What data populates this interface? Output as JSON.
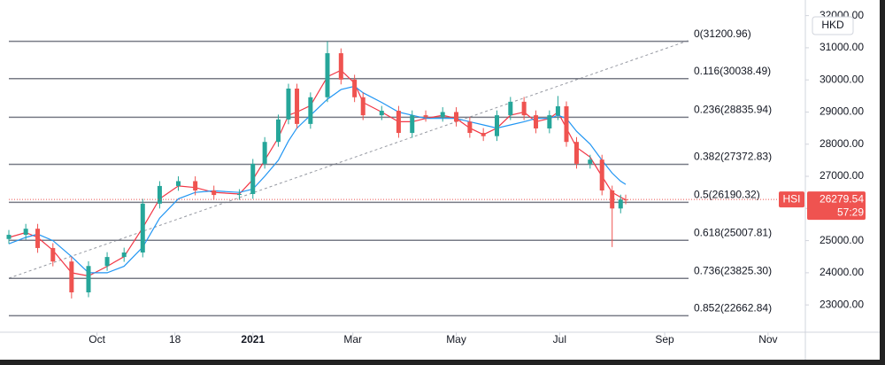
{
  "chart_data": {
    "type": "candlestick",
    "symbol": "HSI",
    "currency": "HKD",
    "countdown": "57:29",
    "x": [
      9,
      19,
      26,
      35,
      46,
      56,
      67,
      77,
      88,
      98,
      109,
      119,
      130,
      145,
      153,
      160,
      168,
      174,
      179,
      187,
      197,
      205,
      213,
      218,
      229,
      239,
      247,
      255,
      265,
      273,
      281,
      289,
      297,
      305,
      313,
      320,
      328,
      333,
      338,
      344,
      352,
      359,
      365,
      370,
      373
    ],
    "open": [
      25050,
      25180,
      25370,
      24770,
      24350,
      23390,
      24210,
      24490,
      24630,
      26150,
      26700,
      26850,
      26560,
      26420,
      26450,
      27390,
      28070,
      28770,
      29730,
      28630,
      29460,
      30830,
      30010,
      29460,
      28900,
      29040,
      28350,
      28900,
      28850,
      29000,
      28700,
      28350,
      28250,
      28900,
      29320,
      28900,
      28490,
      28900,
      29180,
      28070,
      27390,
      27520,
      26560,
      26000,
      26280
    ],
    "high": [
      25330,
      25520,
      25520,
      24920,
      24500,
      24360,
      24640,
      24780,
      26300,
      26850,
      27000,
      27000,
      26710,
      26600,
      27540,
      28220,
      28920,
      29880,
      29880,
      29610,
      31200,
      30980,
      30160,
      29610,
      29190,
      29190,
      29050,
      29050,
      29150,
      29150,
      28850,
      28500,
      29050,
      29470,
      29470,
      29050,
      29050,
      29500,
      29330,
      28220,
      27670,
      27670,
      26710,
      26430,
      26430
    ],
    "low": [
      24900,
      25030,
      24620,
      24200,
      23200,
      23240,
      24060,
      24340,
      24480,
      26000,
      26550,
      26410,
      26270,
      26270,
      26300,
      27240,
      27920,
      28620,
      28480,
      28480,
      29310,
      29860,
      29310,
      28750,
      28750,
      28200,
      28200,
      28700,
      28700,
      28550,
      28200,
      28100,
      28100,
      28750,
      28750,
      28340,
      28340,
      28750,
      27920,
      27240,
      27240,
      26410,
      24800,
      25850,
      26130
    ],
    "close": [
      25180,
      25370,
      24770,
      24350,
      23390,
      24210,
      24490,
      24630,
      26150,
      26700,
      26850,
      26560,
      26420,
      26450,
      27390,
      28070,
      28770,
      29730,
      28630,
      29460,
      30830,
      30010,
      29460,
      28900,
      29040,
      28350,
      28900,
      28850,
      29000,
      28700,
      28350,
      28250,
      28900,
      29320,
      28900,
      28490,
      28900,
      29180,
      28070,
      27390,
      27520,
      26560,
      26000,
      26280,
      26279.54
    ],
    "up_color": "#26a69a",
    "down_color": "#ef5350",
    "ma": [
      {
        "color": "#f23645",
        "values": [
          25100,
          25250,
          25100,
          24700,
          24000,
          23900,
          24200,
          24500,
          25400,
          26300,
          26700,
          26650,
          26500,
          26450,
          26900,
          27500,
          28200,
          28900,
          29000,
          29200,
          30100,
          30300,
          29900,
          29300,
          29000,
          28700,
          28700,
          28800,
          28900,
          28800,
          28500,
          28300,
          28500,
          28900,
          29000,
          28700,
          28800,
          29000,
          28500,
          27900,
          27600,
          27000,
          26500,
          26350,
          26270
        ]
      },
      {
        "color": "#2196f3",
        "values": [
          24900,
          25100,
          25200,
          25000,
          24500,
          24000,
          24000,
          24200,
          24800,
          25700,
          26300,
          26500,
          26550,
          26500,
          26600,
          27000,
          27500,
          28100,
          28500,
          28900,
          29400,
          29700,
          29800,
          29600,
          29300,
          29000,
          28900,
          28800,
          28800,
          28800,
          28700,
          28600,
          28500,
          28600,
          28700,
          28800,
          28800,
          28900,
          28800,
          28400,
          28000,
          27500,
          27100,
          26850,
          26750
        ]
      }
    ],
    "fib_levels": [
      {
        "value": 31200.96,
        "label": "0(31200.96)"
      },
      {
        "value": 30038.49,
        "label": "0.116(30038.49)"
      },
      {
        "value": 28835.94,
        "label": "0.236(28835.94)"
      },
      {
        "value": 27372.83,
        "label": "0.382(27372.83)"
      },
      {
        "value": 26190.32,
        "label": "0.5(26190.32)"
      },
      {
        "value": 25007.81,
        "label": "0.618(25007.81)"
      },
      {
        "value": 23825.3,
        "label": "0.736(23825.30)"
      },
      {
        "value": 22662.84,
        "label": "0.852(22662.84)"
      }
    ],
    "xlim": [
      9,
      479
    ],
    "ylim": [
      22150,
      32210
    ],
    "xticks": [
      {
        "value": 61,
        "label": "Oct"
      },
      {
        "value": 107,
        "label": "18"
      },
      {
        "value": 153,
        "label": "2021"
      },
      {
        "value": 212,
        "label": "Mar"
      },
      {
        "value": 273,
        "label": "May"
      },
      {
        "value": 334,
        "label": "Jul"
      },
      {
        "value": 396,
        "label": "Sep"
      },
      {
        "value": 457,
        "label": "Nov"
      }
    ],
    "yticks": [
      {
        "value": 23000,
        "label": "23000.00"
      },
      {
        "value": 24000,
        "label": "24000.00"
      },
      {
        "value": 25000,
        "label": "25000.00"
      },
      {
        "value": 26000,
        "label": "26000.00"
      },
      {
        "value": 27000,
        "label": "27000.00"
      },
      {
        "value": 28000,
        "label": "28000.00"
      },
      {
        "value": 29000,
        "label": "29000.00"
      },
      {
        "value": 30000,
        "label": "30000.00"
      },
      {
        "value": 31000,
        "label": "31000.00"
      },
      {
        "value": 32000,
        "label": "32000.00"
      }
    ]
  }
}
